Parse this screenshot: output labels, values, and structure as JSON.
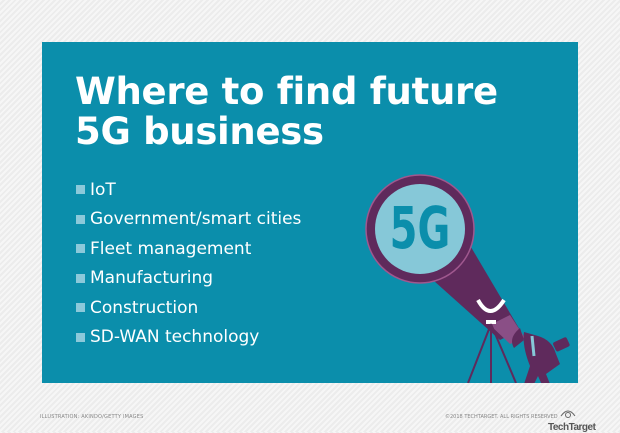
{
  "title_line1": "Where to find future",
  "title_line2": "5G business",
  "items": [
    "IoT",
    "Government/smart cities",
    "Fleet management",
    "Manufacturing",
    "Construction",
    "SD-WAN technology"
  ],
  "illustration_label": "5G",
  "footer": {
    "credit": "ILLUSTRATION: AKINDO/GETTY IMAGES",
    "copyright": "©2018 TECHTARGET. ALL RIGHTS RESERVED",
    "logo": "TechTarget"
  },
  "colors": {
    "panel": "#0b8eab",
    "accent": "#5f2a5c",
    "lens": "#86c8d8",
    "bullet": "#8cc9da"
  }
}
